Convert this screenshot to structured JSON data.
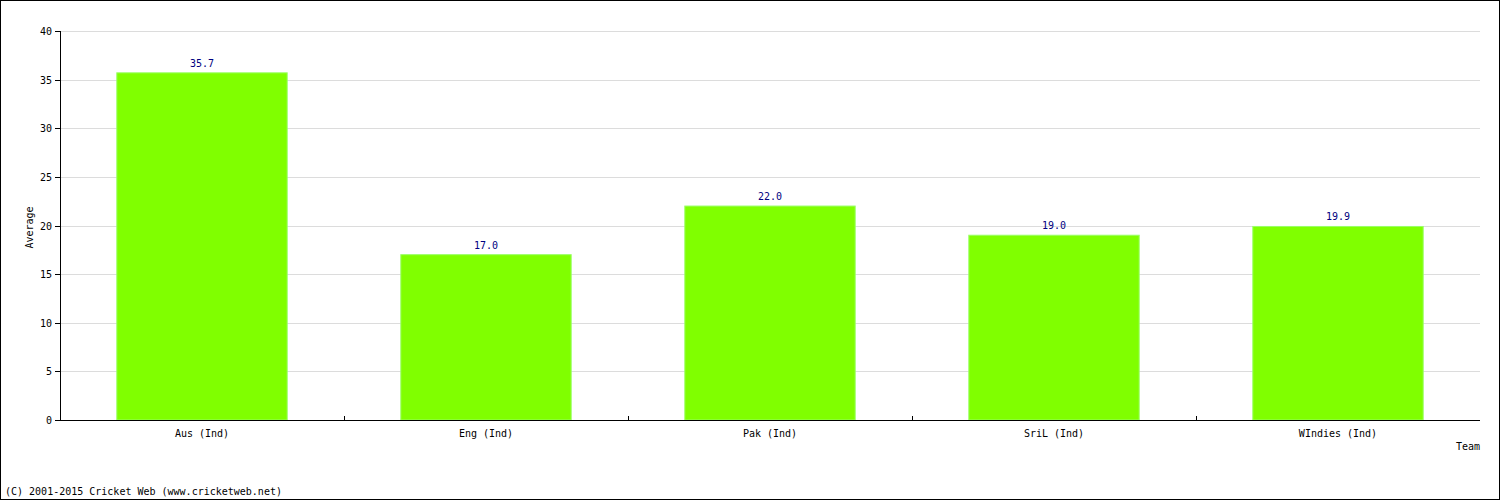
{
  "chart_data": {
    "type": "bar",
    "x_label": "Team",
    "y_label": "Average",
    "footer": "(C) 2001-2015 Cricket Web (www.cricketweb.net)",
    "categories": [
      "Aus (Ind)",
      "Eng (Ind)",
      "Pak (Ind)",
      "SriL (Ind)",
      "WIndies (Ind)"
    ],
    "values": [
      35.7,
      17.0,
      22.0,
      19.0,
      19.9
    ],
    "value_labels": [
      "35.7",
      "17.0",
      "22.0",
      "19.0",
      "19.9"
    ],
    "color": "#80ff00",
    "ylim": [
      0,
      40
    ],
    "yticks": [
      0,
      5,
      10,
      15,
      20,
      25,
      30,
      35,
      40
    ],
    "grid": true,
    "data_labels": true
  }
}
